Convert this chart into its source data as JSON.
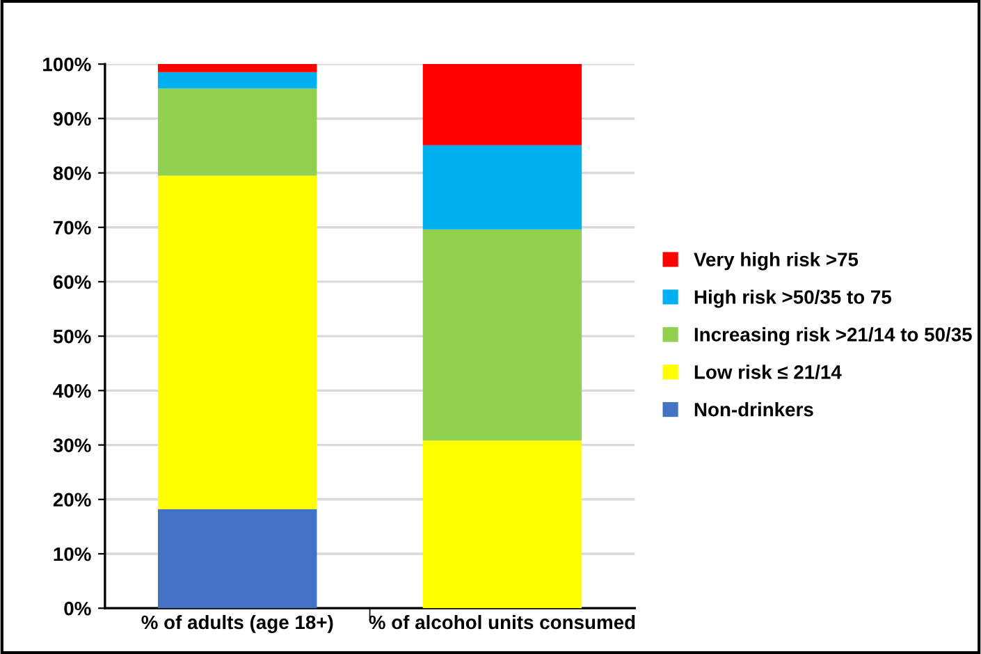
{
  "chart_data": {
    "type": "bar",
    "stacked": true,
    "categories": [
      "% of adults (age 18+)",
      "% of alcohol units consumed"
    ],
    "series": [
      {
        "name": "Non-drinkers",
        "color": "#4472c4",
        "values": [
          18.2,
          0
        ]
      },
      {
        "name": "Low risk ≤ 21/14",
        "color": "#ffff00",
        "values": [
          61.3,
          30.8
        ]
      },
      {
        "name": "Increasing risk >21/14 to 50/35",
        "color": "#92d050",
        "values": [
          16.0,
          38.8
        ]
      },
      {
        "name": "High risk >50/35 to 75",
        "color": "#00b0f0",
        "values": [
          3.0,
          15.5
        ]
      },
      {
        "name": "Very high risk >75",
        "color": "#ff0000",
        "values": [
          1.5,
          14.9
        ]
      }
    ],
    "ylim": [
      0,
      100
    ],
    "yticks": [
      {
        "value": 0,
        "label": "0%"
      },
      {
        "value": 10,
        "label": "10%"
      },
      {
        "value": 20,
        "label": "20%"
      },
      {
        "value": 30,
        "label": "30%"
      },
      {
        "value": 40,
        "label": "40%"
      },
      {
        "value": 50,
        "label": "50%"
      },
      {
        "value": 60,
        "label": "60%"
      },
      {
        "value": 70,
        "label": "70%"
      },
      {
        "value": 80,
        "label": "80%"
      },
      {
        "value": 90,
        "label": "90%"
      },
      {
        "value": 100,
        "label": "100%"
      }
    ],
    "grid": "y",
    "legend": "right"
  }
}
